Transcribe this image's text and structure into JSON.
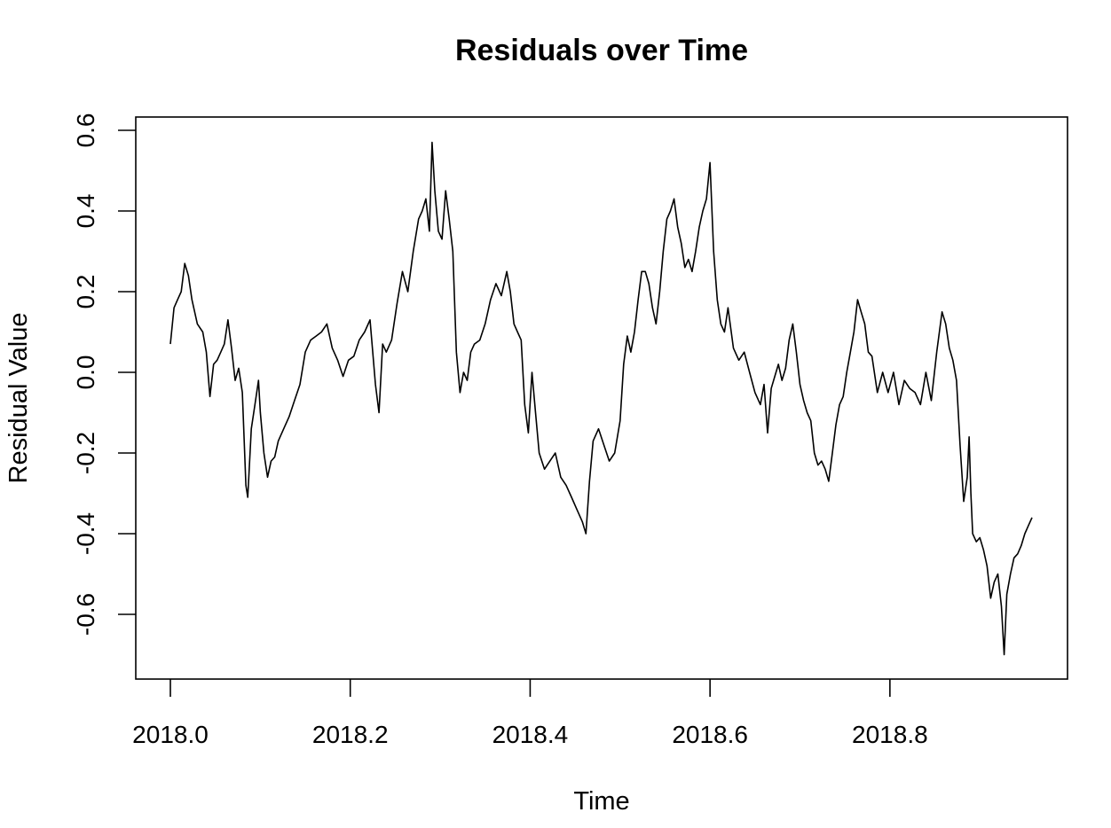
{
  "chart_data": {
    "type": "line",
    "title": "Residuals over Time",
    "xlabel": "Time",
    "ylabel": "Residual Value",
    "xlim": [
      1999,
      2019
    ],
    "ylim": [
      -0.74,
      0.62
    ],
    "x_ticks": [
      2018.0,
      2018.2,
      2018.4,
      2018.6,
      2018.8
    ],
    "x_tick_labels": [
      "2018.0",
      "2018.2",
      "2018.4",
      "2018.6",
      "2018.8"
    ],
    "y_ticks": [
      -0.6,
      -0.4,
      -0.2,
      0.0,
      0.2,
      0.4,
      0.6
    ],
    "y_tick_labels": [
      "-0.6",
      "-0.4",
      "-0.2",
      "0.0",
      "0.2",
      "0.4",
      "0.6"
    ],
    "grid": false,
    "legend": "none",
    "line_color": "#000000",
    "series": [
      {
        "x": [
          2018.0,
          2018.004,
          2018.008,
          2018.012,
          2018.016,
          2018.02,
          2018.024,
          2018.03,
          2018.036,
          2018.04,
          2018.044,
          2018.048,
          2018.052,
          2018.056,
          2018.06,
          2018.064,
          2018.068,
          2018.072,
          2018.076,
          2018.08,
          2018.084,
          2018.086,
          2018.09,
          2018.094,
          2018.098,
          2018.1,
          2018.104,
          2018.108,
          2018.112,
          2018.116,
          2018.12,
          2018.126,
          2018.132,
          2018.138,
          2018.144,
          2018.15,
          2018.156,
          2018.162,
          2018.168,
          2018.174,
          2018.18,
          2018.186,
          2018.192,
          2018.198,
          2018.204,
          2018.21,
          2018.216,
          2018.222,
          2018.228,
          2018.232,
          2018.236,
          2018.24,
          2018.246,
          2018.252,
          2018.258,
          2018.264,
          2018.27,
          2018.276,
          2018.28,
          2018.284,
          2018.288,
          2018.291,
          2018.294,
          2018.298,
          2018.302,
          2018.306,
          2018.31,
          2018.314,
          2018.318,
          2018.322,
          2018.326,
          2018.33,
          2018.334,
          2018.338,
          2018.344,
          2018.35,
          2018.356,
          2018.362,
          2018.368,
          2018.374,
          2018.378,
          2018.382,
          2018.386,
          2018.39,
          2018.394,
          2018.398,
          2018.402,
          2018.406,
          2018.41,
          2018.416,
          2018.422,
          2018.428,
          2018.434,
          2018.44,
          2018.446,
          2018.452,
          2018.458,
          2018.462,
          2018.466,
          2018.47,
          2018.476,
          2018.482,
          2018.488,
          2018.494,
          2018.5,
          2018.504,
          2018.508,
          2018.512,
          2018.516,
          2018.52,
          2018.524,
          2018.528,
          2018.532,
          2018.536,
          2018.54,
          2018.544,
          2018.548,
          2018.552,
          2018.556,
          2018.56,
          2018.564,
          2018.568,
          2018.572,
          2018.576,
          2018.58,
          2018.584,
          2018.588,
          2018.592,
          2018.596,
          2018.6,
          2018.604,
          2018.608,
          2018.612,
          2018.616,
          2018.62,
          2018.626,
          2018.632,
          2018.638,
          2018.644,
          2018.65,
          2018.656,
          2018.66,
          2018.664,
          2018.668,
          2018.672,
          2018.676,
          2018.68,
          2018.684,
          2018.688,
          2018.692,
          2018.696,
          2018.7,
          2018.704,
          2018.708,
          2018.712,
          2018.716,
          2018.72,
          2018.724,
          2018.728,
          2018.732,
          2018.736,
          2018.74,
          2018.744,
          2018.748,
          2018.752,
          2018.756,
          2018.76,
          2018.764,
          2018.768,
          2018.772,
          2018.776,
          2018.78,
          2018.786,
          2018.792,
          2018.798,
          2018.804,
          2018.81,
          2018.816,
          2018.822,
          2018.828,
          2018.834,
          2018.84,
          2018.846,
          2018.852,
          2018.858,
          2018.862,
          2018.866,
          2018.87,
          2018.874,
          2018.878,
          2018.882,
          2018.886,
          2018.888,
          2018.89,
          2018.892,
          2018.896,
          2018.9,
          2018.904,
          2018.908,
          2018.912,
          2018.916,
          2018.92,
          2018.924,
          2018.927,
          2018.93,
          2018.934,
          2018.938,
          2018.942,
          2018.946,
          2018.95,
          2018.954,
          2018.958
        ],
        "values": [
          0.07,
          0.16,
          0.18,
          0.2,
          0.27,
          0.24,
          0.18,
          0.12,
          0.1,
          0.05,
          -0.06,
          0.02,
          0.03,
          0.05,
          0.07,
          0.13,
          0.06,
          -0.02,
          0.01,
          -0.05,
          -0.28,
          -0.31,
          -0.14,
          -0.08,
          -0.02,
          -0.1,
          -0.2,
          -0.26,
          -0.22,
          -0.21,
          -0.17,
          -0.14,
          -0.11,
          -0.07,
          -0.03,
          0.05,
          0.08,
          0.09,
          0.1,
          0.12,
          0.06,
          0.03,
          -0.01,
          0.03,
          0.04,
          0.08,
          0.1,
          0.13,
          -0.03,
          -0.1,
          0.07,
          0.05,
          0.08,
          0.17,
          0.25,
          0.2,
          0.3,
          0.38,
          0.4,
          0.43,
          0.35,
          0.57,
          0.45,
          0.35,
          0.33,
          0.45,
          0.38,
          0.3,
          0.05,
          -0.05,
          0.0,
          -0.02,
          0.05,
          0.07,
          0.08,
          0.12,
          0.18,
          0.22,
          0.19,
          0.25,
          0.2,
          0.12,
          0.1,
          0.08,
          -0.08,
          -0.15,
          0.0,
          -0.1,
          -0.2,
          -0.24,
          -0.22,
          -0.2,
          -0.26,
          -0.28,
          -0.31,
          -0.34,
          -0.37,
          -0.4,
          -0.27,
          -0.17,
          -0.14,
          -0.18,
          -0.22,
          -0.2,
          -0.12,
          0.02,
          0.09,
          0.05,
          0.1,
          0.18,
          0.25,
          0.25,
          0.22,
          0.16,
          0.12,
          0.2,
          0.3,
          0.38,
          0.4,
          0.43,
          0.36,
          0.32,
          0.26,
          0.28,
          0.25,
          0.3,
          0.36,
          0.4,
          0.43,
          0.52,
          0.3,
          0.18,
          0.12,
          0.1,
          0.16,
          0.06,
          0.03,
          0.05,
          0.0,
          -0.05,
          -0.08,
          -0.03,
          -0.15,
          -0.04,
          -0.01,
          0.02,
          -0.02,
          0.01,
          0.08,
          0.12,
          0.05,
          -0.03,
          -0.07,
          -0.1,
          -0.12,
          -0.2,
          -0.23,
          -0.22,
          -0.24,
          -0.27,
          -0.2,
          -0.13,
          -0.08,
          -0.06,
          0.0,
          0.05,
          0.1,
          0.18,
          0.15,
          0.12,
          0.05,
          0.04,
          -0.05,
          0.0,
          -0.05,
          0.0,
          -0.08,
          -0.02,
          -0.04,
          -0.05,
          -0.08,
          0.0,
          -0.07,
          0.05,
          0.15,
          0.12,
          0.06,
          0.03,
          -0.02,
          -0.18,
          -0.32,
          -0.26,
          -0.16,
          -0.3,
          -0.4,
          -0.42,
          -0.41,
          -0.44,
          -0.48,
          -0.56,
          -0.52,
          -0.5,
          -0.58,
          -0.7,
          -0.55,
          -0.5,
          -0.46,
          -0.45,
          -0.43,
          -0.4,
          -0.38,
          -0.36
        ]
      }
    ]
  }
}
